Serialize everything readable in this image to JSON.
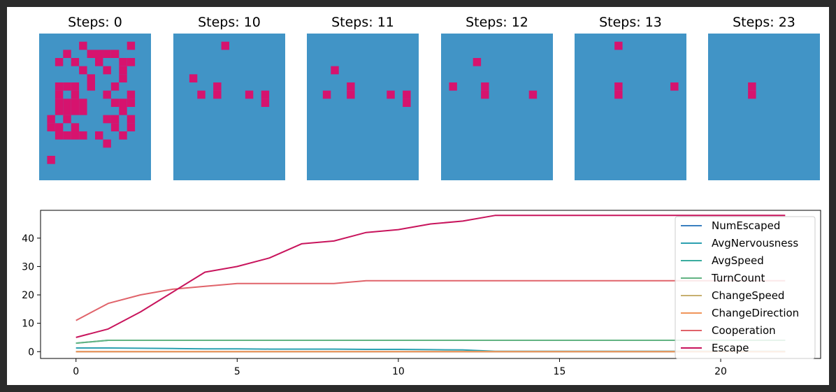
{
  "chart_data": [
    {
      "type": "heatmap",
      "title": "Steps: 0",
      "colors": {
        "empty": "#4194c6",
        "agent": "#d6136e"
      },
      "grid_cols": 14,
      "grid_rows": 18,
      "cells": [
        [
          5,
          1
        ],
        [
          11,
          1
        ],
        [
          3,
          2
        ],
        [
          6,
          2
        ],
        [
          7,
          2
        ],
        [
          8,
          2
        ],
        [
          9,
          2
        ],
        [
          2,
          3
        ],
        [
          4,
          3
        ],
        [
          7,
          3
        ],
        [
          10,
          3
        ],
        [
          11,
          3
        ],
        [
          5,
          4
        ],
        [
          8,
          4
        ],
        [
          10,
          4
        ],
        [
          6,
          5
        ],
        [
          10,
          5
        ],
        [
          2,
          6
        ],
        [
          3,
          6
        ],
        [
          4,
          6
        ],
        [
          6,
          6
        ],
        [
          9,
          6
        ],
        [
          2,
          7
        ],
        [
          4,
          7
        ],
        [
          8,
          7
        ],
        [
          11,
          7
        ],
        [
          2,
          8
        ],
        [
          3,
          8
        ],
        [
          4,
          8
        ],
        [
          5,
          8
        ],
        [
          9,
          8
        ],
        [
          10,
          8
        ],
        [
          11,
          8
        ],
        [
          2,
          9
        ],
        [
          3,
          9
        ],
        [
          4,
          9
        ],
        [
          5,
          9
        ],
        [
          10,
          9
        ],
        [
          1,
          10
        ],
        [
          3,
          10
        ],
        [
          8,
          10
        ],
        [
          9,
          10
        ],
        [
          11,
          10
        ],
        [
          1,
          11
        ],
        [
          2,
          11
        ],
        [
          4,
          11
        ],
        [
          9,
          11
        ],
        [
          11,
          11
        ],
        [
          2,
          12
        ],
        [
          3,
          12
        ],
        [
          4,
          12
        ],
        [
          5,
          12
        ],
        [
          7,
          12
        ],
        [
          10,
          12
        ],
        [
          8,
          13
        ],
        [
          1,
          15
        ]
      ]
    },
    {
      "type": "heatmap",
      "title": "Steps: 10",
      "colors": {
        "empty": "#4194c6",
        "agent": "#d6136e"
      },
      "grid_cols": 14,
      "grid_rows": 18,
      "cells": [
        [
          6,
          1
        ],
        [
          2,
          5
        ],
        [
          5,
          6
        ],
        [
          3,
          7
        ],
        [
          5,
          7
        ],
        [
          9,
          7
        ],
        [
          11,
          7
        ],
        [
          11,
          8
        ]
      ]
    },
    {
      "type": "heatmap",
      "title": "Steps: 11",
      "colors": {
        "empty": "#4194c6",
        "agent": "#d6136e"
      },
      "grid_cols": 14,
      "grid_rows": 18,
      "cells": [
        [
          3,
          4
        ],
        [
          5,
          6
        ],
        [
          2,
          7
        ],
        [
          5,
          7
        ],
        [
          10,
          7
        ],
        [
          12,
          7
        ],
        [
          12,
          8
        ]
      ]
    },
    {
      "type": "heatmap",
      "title": "Steps: 12",
      "colors": {
        "empty": "#4194c6",
        "agent": "#d6136e"
      },
      "grid_cols": 14,
      "grid_rows": 18,
      "cells": [
        [
          4,
          3
        ],
        [
          1,
          6
        ],
        [
          5,
          6
        ],
        [
          5,
          7
        ],
        [
          11,
          7
        ]
      ]
    },
    {
      "type": "heatmap",
      "title": "Steps: 13",
      "colors": {
        "empty": "#4194c6",
        "agent": "#d6136e"
      },
      "grid_cols": 14,
      "grid_rows": 18,
      "cells": [
        [
          5,
          1
        ],
        [
          5,
          6
        ],
        [
          12,
          6
        ],
        [
          5,
          7
        ]
      ]
    },
    {
      "type": "heatmap",
      "title": "Steps: 23",
      "colors": {
        "empty": "#4194c6",
        "agent": "#d6136e"
      },
      "grid_cols": 14,
      "grid_rows": 18,
      "cells": [
        [
          5,
          6
        ],
        [
          5,
          7
        ]
      ]
    },
    {
      "type": "line",
      "title": "",
      "xlabel": "",
      "ylabel": "",
      "xlim": [
        -1.1,
        23.1
      ],
      "ylim": [
        -2.4,
        49.8
      ],
      "xticks": [
        0,
        5,
        10,
        15,
        20
      ],
      "yticks": [
        0,
        10,
        20,
        30,
        40
      ],
      "legend_position": "right",
      "x": [
        0,
        1,
        2,
        3,
        4,
        5,
        6,
        7,
        8,
        9,
        10,
        11,
        12,
        13,
        14,
        15,
        16,
        17,
        18,
        19,
        20,
        21,
        22
      ],
      "series": [
        {
          "name": "NumEscaped",
          "color": "#3a7fc0",
          "values": [
            0,
            0,
            0,
            0,
            0,
            0,
            0,
            0,
            0,
            0,
            0,
            0,
            0,
            0,
            0,
            0,
            0,
            0,
            0,
            0,
            0,
            0,
            0
          ]
        },
        {
          "name": "AvgNervousness",
          "color": "#2ca0b0",
          "values": [
            1.3,
            1.3,
            1.2,
            1.1,
            1.0,
            1.0,
            0.9,
            0.9,
            0.9,
            0.8,
            0.8,
            0.7,
            0.6,
            0.1,
            0.1,
            0.1,
            0.1,
            0.1,
            0.1,
            0.1,
            0.1,
            0.1,
            0.1
          ]
        },
        {
          "name": "AvgSpeed",
          "color": "#3aac9f",
          "values": [
            3,
            4,
            4,
            4,
            4,
            4,
            4,
            4,
            4,
            4,
            4,
            4,
            4,
            4,
            4,
            4,
            4,
            4,
            4,
            4,
            4,
            4,
            4
          ]
        },
        {
          "name": "TurnCount",
          "color": "#62b382",
          "values": [
            3,
            4,
            4,
            4,
            4,
            4,
            4,
            4,
            4,
            4,
            4,
            4,
            4,
            4,
            4,
            4,
            4,
            4,
            4,
            4,
            4,
            4,
            4
          ]
        },
        {
          "name": "ChangeSpeed",
          "color": "#c7b070",
          "values": [
            0,
            0,
            0,
            0,
            0,
            0,
            0,
            0,
            0,
            0,
            0,
            0,
            0,
            0,
            0,
            0,
            0,
            0,
            0,
            0,
            0,
            0,
            0
          ]
        },
        {
          "name": "ChangeDirection",
          "color": "#f0955a",
          "values": [
            0,
            0,
            0,
            0,
            0,
            0,
            0,
            0,
            0,
            0,
            0,
            0,
            0,
            0,
            0,
            0,
            0,
            0,
            0,
            0,
            0,
            0,
            0
          ]
        },
        {
          "name": "Cooperation",
          "color": "#e0636a",
          "values": [
            11,
            17,
            20,
            22,
            23,
            24,
            24,
            24,
            24,
            25,
            25,
            25,
            25,
            25,
            25,
            25,
            25,
            25,
            25,
            25,
            25,
            25,
            25
          ]
        },
        {
          "name": "Escape",
          "color": "#c8145c",
          "values": [
            5,
            8,
            14,
            21,
            28,
            30,
            33,
            38,
            39,
            42,
            43,
            45,
            46,
            48,
            48,
            48,
            48,
            48,
            48,
            48,
            48,
            48,
            48
          ]
        }
      ]
    }
  ]
}
